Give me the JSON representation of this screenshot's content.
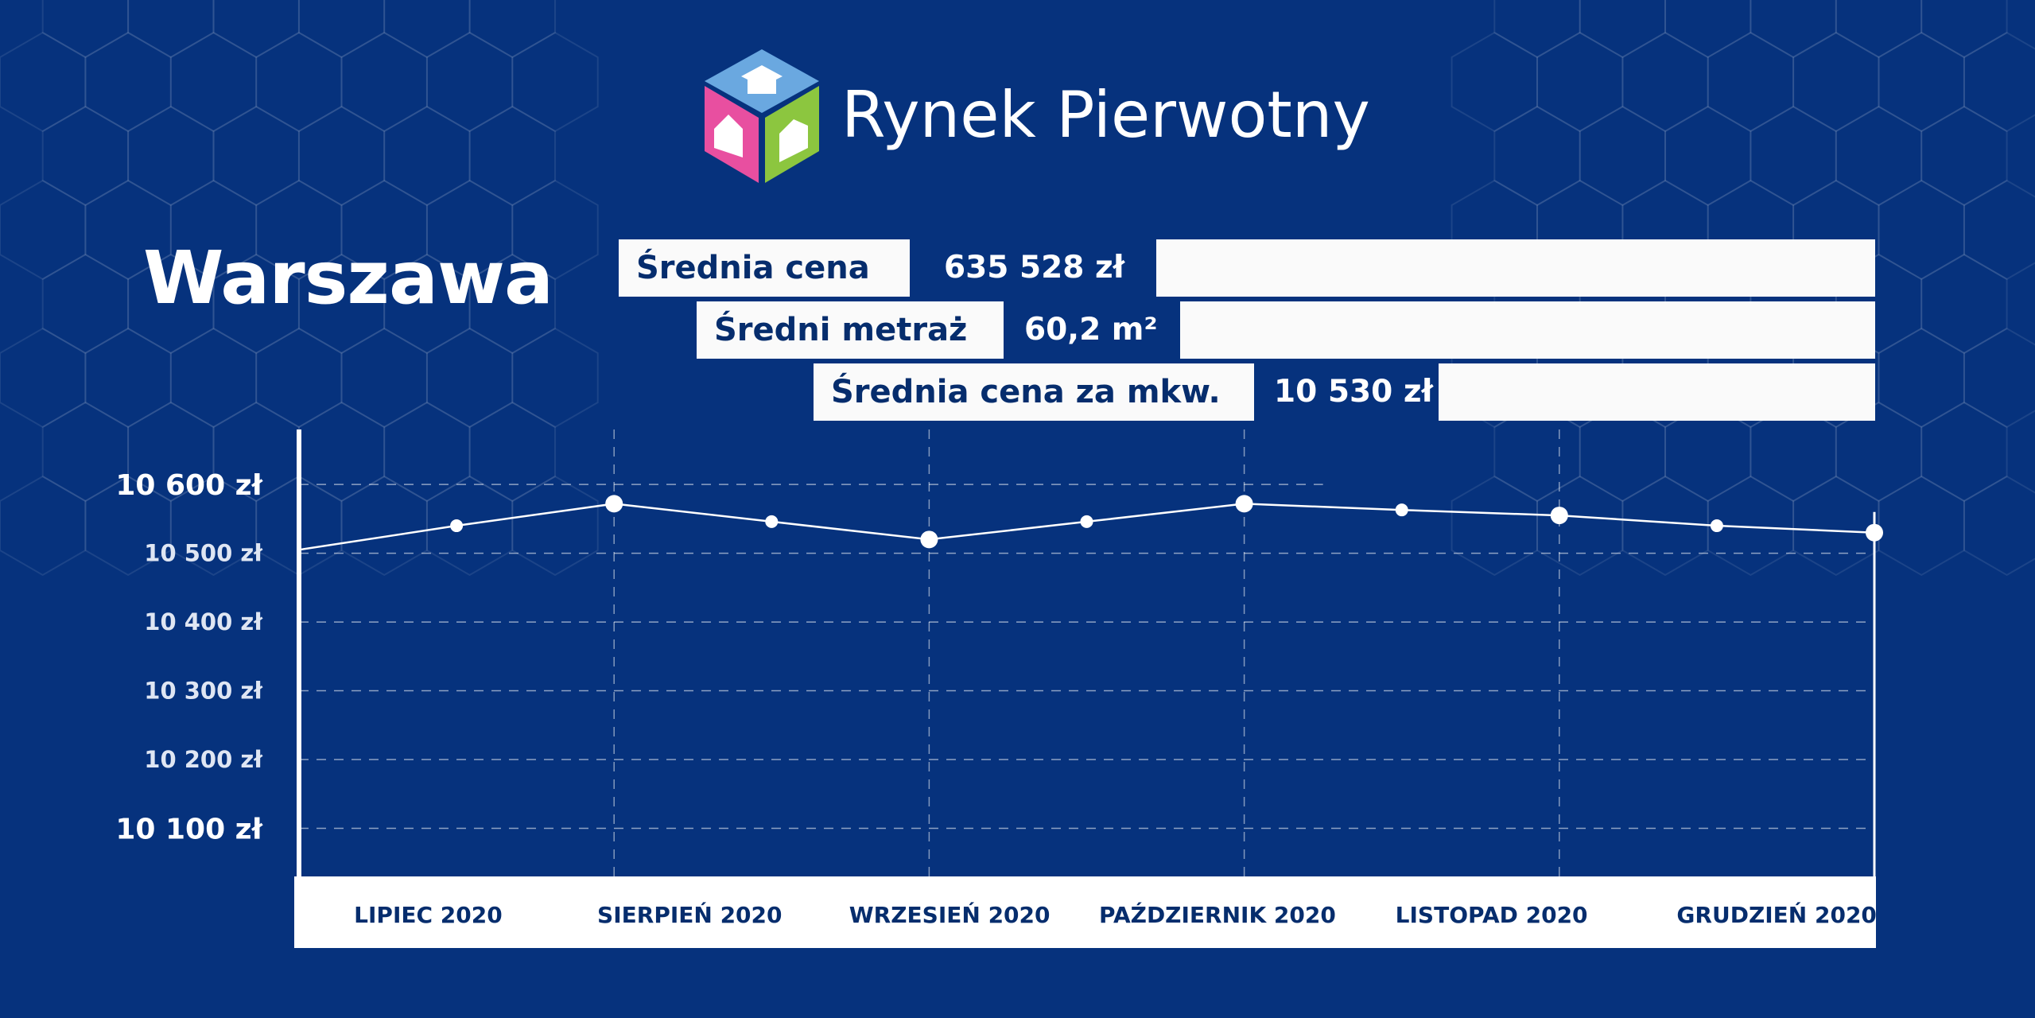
{
  "brand": {
    "name": "Rynek Pierwotny"
  },
  "city": "Warszawa",
  "stats": [
    {
      "label": "Średnia cena",
      "value": "635 528 zł"
    },
    {
      "label": "Średni metraż",
      "value": "60,2 m²"
    },
    {
      "label": "Średnia cena za mkw.",
      "value": "10 530 zł"
    }
  ],
  "colors": {
    "background": "#06327d",
    "panel": "#fafafa",
    "text_dark": "#062d6d",
    "logo_blue": "#6aa8e0",
    "logo_pink": "#e84fa0",
    "logo_green": "#8cc63f"
  },
  "chart_data": {
    "type": "line",
    "categories": [
      "LIPIEC 2020",
      "SIERPIEŃ 2020",
      "WRZESIEŃ 2020",
      "PAŹDZIERNIK 2020",
      "LISTOPAD 2020",
      "GRUDZIEŃ 2020"
    ],
    "y_ticks": [
      {
        "value": 10600,
        "label": "10 600 zł"
      },
      {
        "value": 10500,
        "label": "10 500 zł"
      },
      {
        "value": 10400,
        "label": "10 400 zł"
      },
      {
        "value": 10300,
        "label": "10 300 zł"
      },
      {
        "value": 10200,
        "label": "10 200 zł"
      },
      {
        "value": 10100,
        "label": "10 100 zł"
      }
    ],
    "ylim": [
      10030,
      10680
    ],
    "xlim": [
      0,
      10
    ],
    "series": [
      {
        "x": [
          0,
          1,
          2,
          3,
          4,
          5,
          6,
          7,
          8,
          9,
          10
        ],
        "y": [
          10505,
          10540,
          10572,
          10546,
          10520,
          10546,
          10572,
          10563,
          10555,
          10540,
          10530
        ],
        "major": [
          false,
          false,
          true,
          false,
          true,
          false,
          true,
          false,
          true,
          false,
          true
        ]
      }
    ],
    "grid": true,
    "title": "",
    "xlabel": "",
    "ylabel": ""
  }
}
